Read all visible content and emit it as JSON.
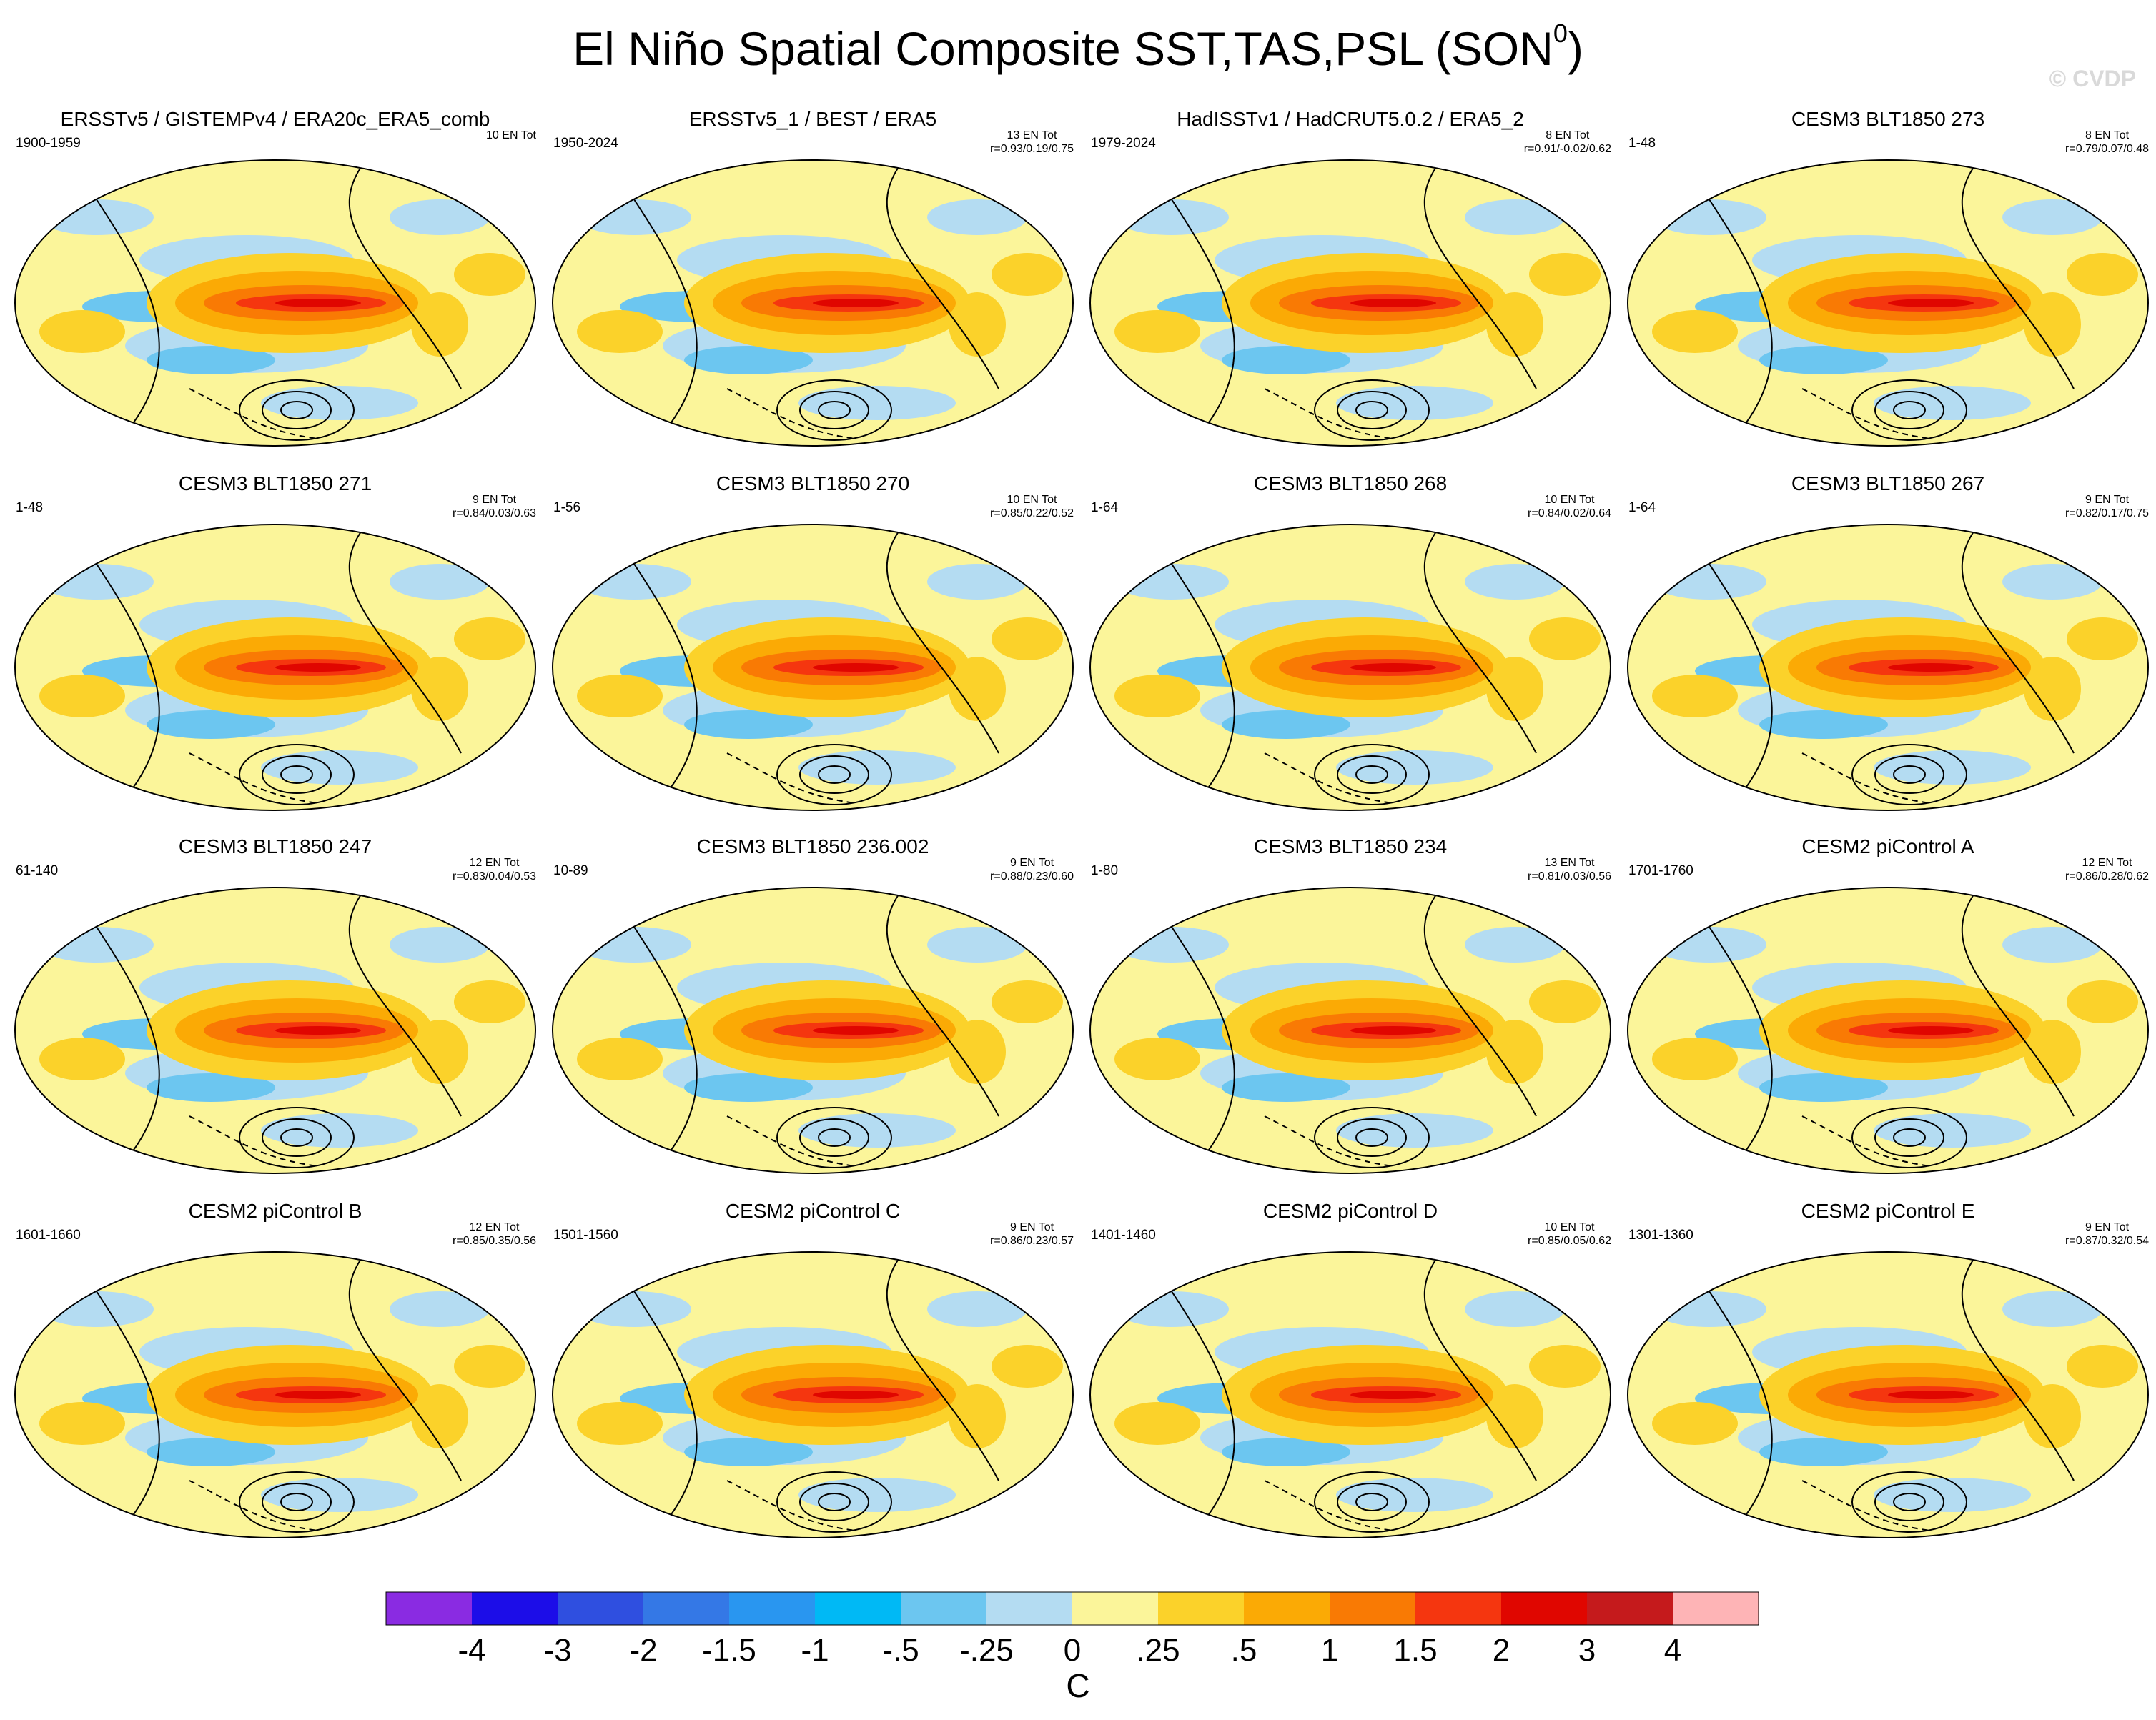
{
  "figure": {
    "title": "El Niño Spatial Composite SST,TAS,PSL (SON",
    "title_superscript": "0",
    "title_suffix": ")",
    "watermark": "© CVDP"
  },
  "panels": [
    {
      "title": "ERSSTv5 / GISTEMPv4 / ERA20c_ERA5_comb",
      "period": "1900-1959",
      "events": "10 EN Tot",
      "stats": ""
    },
    {
      "title": "ERSSTv5_1 / BEST / ERA5",
      "period": "1950-2024",
      "events": "13 EN Tot",
      "stats": "r=0.93/0.19/0.75"
    },
    {
      "title": "HadISSTv1 / HadCRUT5.0.2 / ERA5_2",
      "period": "1979-2024",
      "events": "8 EN Tot",
      "stats": "r=0.91/-0.02/0.62"
    },
    {
      "title": "CESM3 BLT1850 273",
      "period": "1-48",
      "events": "8 EN Tot",
      "stats": "r=0.79/0.07/0.48"
    },
    {
      "title": "CESM3 BLT1850 271",
      "period": "1-48",
      "events": "9 EN Tot",
      "stats": "r=0.84/0.03/0.63"
    },
    {
      "title": "CESM3 BLT1850 270",
      "period": "1-56",
      "events": "10 EN Tot",
      "stats": "r=0.85/0.22/0.52"
    },
    {
      "title": "CESM3 BLT1850 268",
      "period": "1-64",
      "events": "10 EN Tot",
      "stats": "r=0.84/0.02/0.64"
    },
    {
      "title": "CESM3 BLT1850 267",
      "period": "1-64",
      "events": "9 EN Tot",
      "stats": "r=0.82/0.17/0.75"
    },
    {
      "title": "CESM3 BLT1850 247",
      "period": "61-140",
      "events": "12 EN Tot",
      "stats": "r=0.83/0.04/0.53"
    },
    {
      "title": "CESM3 BLT1850 236.002",
      "period": "10-89",
      "events": "9 EN Tot",
      "stats": "r=0.88/0.23/0.60"
    },
    {
      "title": "CESM3 BLT1850 234",
      "period": "1-80",
      "events": "13 EN Tot",
      "stats": "r=0.81/0.03/0.56"
    },
    {
      "title": "CESM2 piControl A",
      "period": "1701-1760",
      "events": "12 EN Tot",
      "stats": "r=0.86/0.28/0.62"
    },
    {
      "title": "CESM2 piControl B",
      "period": "1601-1660",
      "events": "12 EN Tot",
      "stats": "r=0.85/0.35/0.56"
    },
    {
      "title": "CESM2 piControl C",
      "period": "1501-1560",
      "events": "9 EN Tot",
      "stats": "r=0.86/0.23/0.57"
    },
    {
      "title": "CESM2 piControl D",
      "period": "1401-1460",
      "events": "10 EN Tot",
      "stats": "r=0.85/0.05/0.62"
    },
    {
      "title": "CESM2 piControl E",
      "period": "1301-1360",
      "events": "9 EN Tot",
      "stats": "r=0.87/0.32/0.54"
    }
  ],
  "colorbar": {
    "unit": "C",
    "tick_labels": [
      "-4",
      "-3",
      "-2",
      "-1.5",
      "-1",
      "-.5",
      "-.25",
      "0",
      ".25",
      ".5",
      "1",
      "1.5",
      "2",
      "3",
      "4"
    ],
    "colors": [
      "#8a2be2",
      "#1c0de8",
      "#2f4fe0",
      "#3478e6",
      "#2996f0",
      "#00b9f5",
      "#6cc6f0",
      "#b4dcf2",
      "#fbf59a",
      "#fbd22a",
      "#fbaa05",
      "#f97a04",
      "#f5360f",
      "#e00600",
      "#c51a1c",
      "#feb4b6"
    ]
  }
}
